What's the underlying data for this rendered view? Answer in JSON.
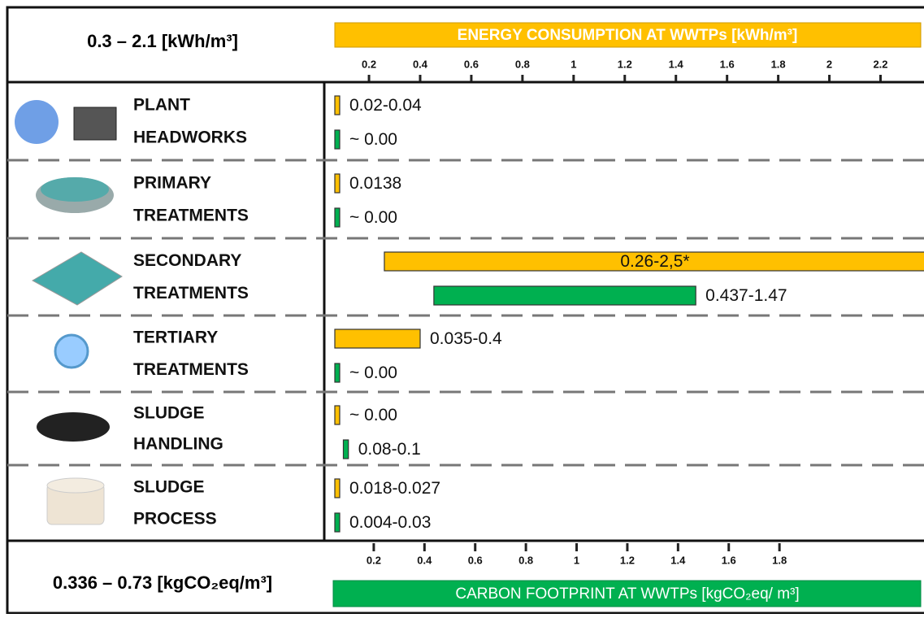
{
  "chart_data": {
    "type": "range-bar",
    "energy_range": "0.3 – 2.1 [kWh/m³]",
    "carbon_range": "0.336 – 0.73 [kgCO₂eq/m³]",
    "energy_axis_title": "ENERGY CONSUMPTION AT WWTPs [kWh/m³]",
    "carbon_axis_title": "CARBON FOOTPRINT AT WWTPs [kgCO₂eq/ m³]",
    "categories": [
      [
        "PLANT",
        "HEADWORKS"
      ],
      [
        "PRIMARY",
        "TREATMENTS"
      ],
      [
        "SECONDARY",
        "TREATMENTS"
      ],
      [
        "TERTIARY",
        "TREATMENTS"
      ],
      [
        "SLUDGE",
        "HANDLING"
      ],
      [
        "SLUDGE",
        "PROCESS"
      ]
    ],
    "energy_xlim": [
      0.06,
      2.37
    ],
    "energy_xticks": [
      0.2,
      0.4,
      0.6,
      0.8,
      1,
      1.2,
      1.4,
      1.6,
      1.8,
      2,
      2.2
    ],
    "carbon_xlim": [
      0.04,
      2.37
    ],
    "carbon_xticks": [
      0.2,
      0.4,
      0.6,
      0.8,
      1,
      1.2,
      1.4,
      1.6,
      1.8
    ],
    "series": [
      {
        "axis": "energy",
        "color": "#FFC000",
        "low": [
          0.02,
          0.0138,
          0.26,
          0.035,
          0,
          0.018
        ],
        "high": [
          0.04,
          0.0138,
          2.5,
          0.4,
          0,
          0.027
        ],
        "value_labels": [
          "0.02-0.04",
          "0.0138",
          "0.26-2,5*",
          "0.035-0.4",
          "~  0.00",
          "0.018-0.027"
        ]
      },
      {
        "axis": "carbon",
        "color": "#00B050",
        "low": [
          0,
          0,
          0.437,
          0,
          0.08,
          0.004
        ],
        "high": [
          0,
          0,
          1.47,
          0,
          0.1,
          0.03
        ],
        "value_labels": [
          "~  0.00",
          "~  0.00",
          "0.437-1.47",
          "~  0.00",
          "0.08-0.1",
          "0.004-0.03"
        ]
      }
    ]
  }
}
